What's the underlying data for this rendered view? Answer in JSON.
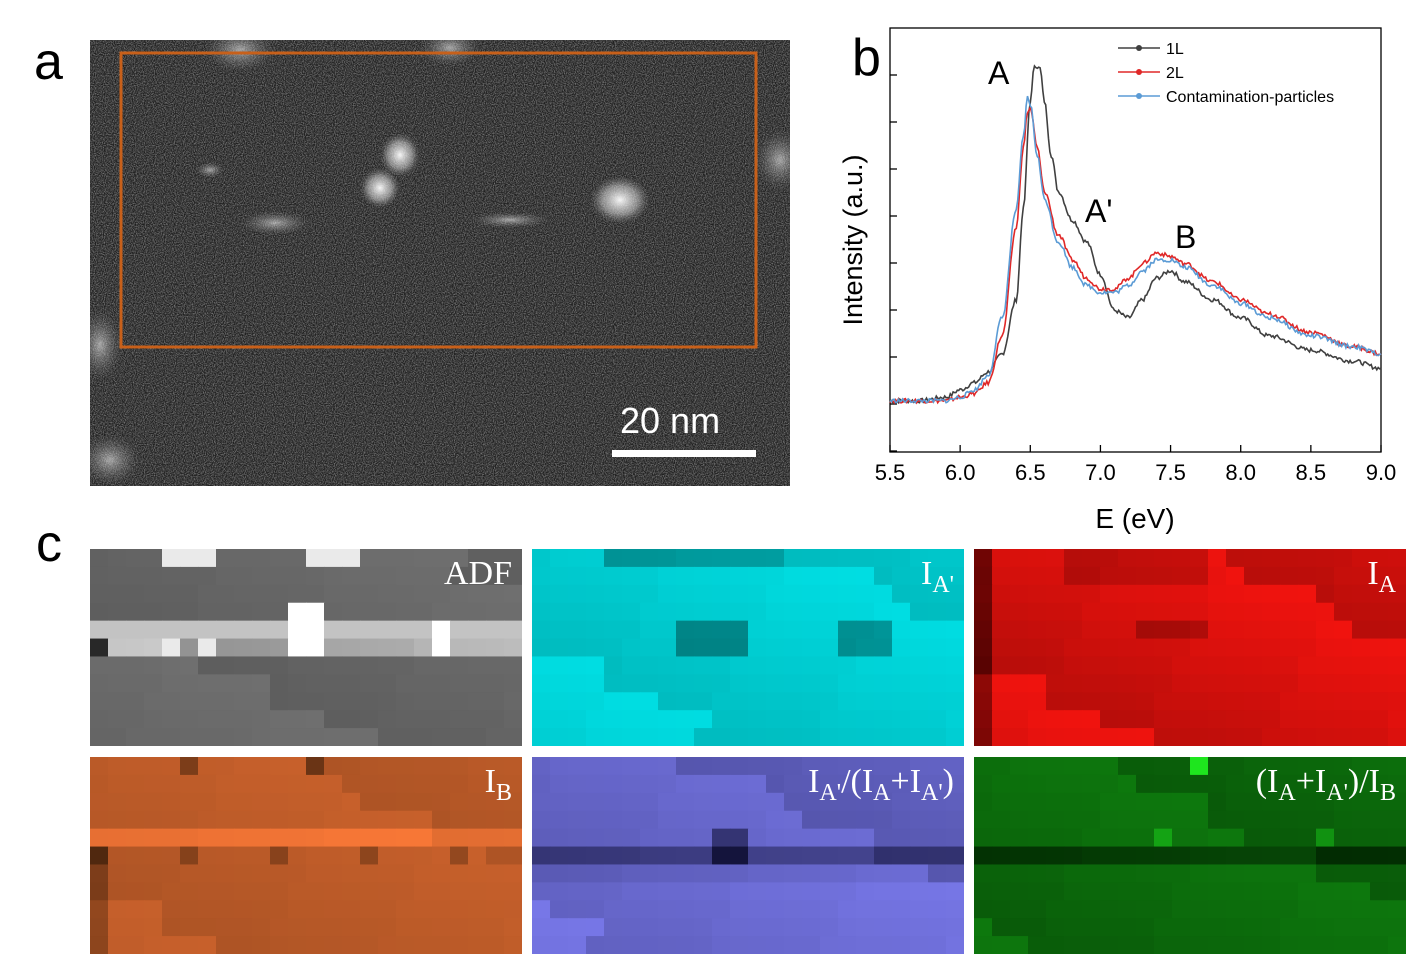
{
  "figure": {
    "panel_a": {
      "letter": "a",
      "scale_bar_label": "20 nm",
      "roi_color": "#c8601a"
    },
    "panel_b": {
      "letter": "b",
      "peak_labels": {
        "A": "A",
        "A_prime": "A'",
        "B": "B"
      }
    },
    "panel_c": {
      "letter": "c",
      "maps": [
        {
          "key": "adf",
          "base": "ADF",
          "colormap": "gray"
        },
        {
          "key": "iaprime",
          "base": "I",
          "sub": "A'",
          "colormap": "cyan"
        },
        {
          "key": "ia",
          "base": "I",
          "sub": "A",
          "colormap": "red"
        },
        {
          "key": "ib",
          "base": "I",
          "sub": "B",
          "colormap": "orange"
        },
        {
          "key": "ratio1",
          "parts": [
            "I",
            "A'",
            "/(I",
            "A",
            "+I",
            "A'",
            ")"
          ],
          "colormap": "blue"
        },
        {
          "key": "ratio2",
          "parts": [
            "(I",
            "A",
            "+I",
            "A'",
            ")/I",
            "B",
            ""
          ],
          "colormap": "green"
        }
      ],
      "map_labels": {
        "adf": "ADF",
        "iaprime_I": "I",
        "iaprime_sub": "A'",
        "ia_I": "I",
        "ia_sub": "A",
        "ib_I": "I",
        "ib_sub": "B",
        "r1_a": "I",
        "r1_b": "A'",
        "r1_c": "/(I",
        "r1_d": "A",
        "r1_e": "+I",
        "r1_f": "A'",
        "r1_g": ")",
        "r2_a": "(I",
        "r2_b": "A",
        "r2_c": "+I",
        "r2_d": "A'",
        "r2_e": ")/I",
        "r2_f": "B"
      }
    }
  },
  "chart_data": {
    "type": "line",
    "xlabel": "E (eV)",
    "ylabel": "Intensity (a.u.)",
    "xlim": [
      5.5,
      9.0
    ],
    "ylim": [
      0,
      1
    ],
    "x_ticks": [
      "5.5",
      "6.0",
      "6.5",
      "7.0",
      "7.5",
      "8.0",
      "8.5",
      "9.0"
    ],
    "y_ticks_labeled": false,
    "legend_position": "top-right",
    "annotations": [
      {
        "text": "A",
        "x": 6.32,
        "y": 1.02
      },
      {
        "text": "A'",
        "x": 7.0,
        "y": 0.6
      },
      {
        "text": "B",
        "x": 7.62,
        "y": 0.52
      }
    ],
    "series": [
      {
        "name": "1L",
        "color": "#404040",
        "x": [
          5.5,
          5.7,
          5.9,
          6.0,
          6.1,
          6.2,
          6.3,
          6.4,
          6.45,
          6.5,
          6.53,
          6.57,
          6.6,
          6.65,
          6.7,
          6.8,
          6.9,
          7.0,
          7.1,
          7.2,
          7.3,
          7.4,
          7.5,
          7.6,
          7.8,
          8.0,
          8.2,
          8.5,
          8.8,
          9.0
        ],
        "y": [
          0.02,
          0.02,
          0.03,
          0.05,
          0.07,
          0.1,
          0.15,
          0.3,
          0.55,
          0.85,
          0.95,
          0.94,
          0.85,
          0.7,
          0.6,
          0.52,
          0.46,
          0.37,
          0.27,
          0.25,
          0.3,
          0.36,
          0.38,
          0.35,
          0.3,
          0.25,
          0.2,
          0.16,
          0.13,
          0.11
        ]
      },
      {
        "name": "2L",
        "color": "#e02828",
        "x": [
          5.5,
          5.7,
          5.9,
          6.0,
          6.1,
          6.2,
          6.3,
          6.4,
          6.45,
          6.48,
          6.5,
          6.55,
          6.6,
          6.7,
          6.8,
          6.9,
          7.0,
          7.1,
          7.2,
          7.3,
          7.4,
          7.5,
          7.6,
          7.8,
          8.0,
          8.2,
          8.5,
          8.8,
          9.0
        ],
        "y": [
          0.02,
          0.02,
          0.02,
          0.03,
          0.04,
          0.07,
          0.2,
          0.5,
          0.72,
          0.82,
          0.83,
          0.72,
          0.6,
          0.48,
          0.41,
          0.36,
          0.33,
          0.33,
          0.36,
          0.4,
          0.43,
          0.42,
          0.4,
          0.35,
          0.3,
          0.26,
          0.21,
          0.17,
          0.15
        ]
      },
      {
        "name": "Contamination-particles",
        "color": "#5b9bd5",
        "x": [
          5.5,
          5.7,
          5.9,
          6.0,
          6.1,
          6.2,
          6.3,
          6.4,
          6.45,
          6.48,
          6.5,
          6.55,
          6.6,
          6.7,
          6.8,
          6.9,
          7.0,
          7.1,
          7.2,
          7.3,
          7.4,
          7.5,
          7.6,
          7.8,
          8.0,
          8.2,
          8.5,
          8.8,
          9.0
        ],
        "y": [
          0.02,
          0.02,
          0.02,
          0.03,
          0.05,
          0.09,
          0.25,
          0.55,
          0.75,
          0.86,
          0.84,
          0.7,
          0.58,
          0.46,
          0.39,
          0.34,
          0.32,
          0.32,
          0.34,
          0.38,
          0.41,
          0.41,
          0.39,
          0.34,
          0.29,
          0.25,
          0.2,
          0.17,
          0.15
        ]
      }
    ]
  }
}
